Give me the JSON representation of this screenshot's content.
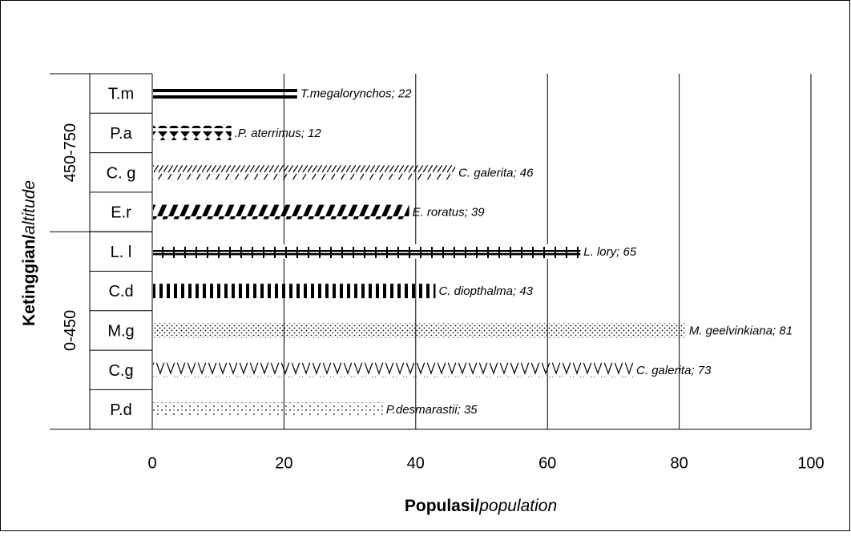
{
  "chart_data": {
    "type": "bar",
    "orientation": "horizontal",
    "title": "",
    "xlabel": {
      "bold": "Populasi/",
      "italic": "population"
    },
    "ylabel": {
      "bold": "Ketinggian/",
      "italic": "altitude"
    },
    "xlim": [
      0,
      100
    ],
    "xticks": [
      "0",
      "20",
      "40",
      "60",
      "80",
      "100"
    ],
    "grid": "vertical",
    "legend": "none",
    "groups": [
      {
        "name": "450-750",
        "count": 4
      },
      {
        "name": "0-450",
        "count": 5
      }
    ],
    "bars": [
      {
        "category": "T.m",
        "value": 22,
        "label": "T.megalorynchos; 22",
        "pattern": "double-line"
      },
      {
        "category": "P.a",
        "value": 12,
        "label": ".P. aterrimus; 12",
        "pattern": "hourglass"
      },
      {
        "category": "C. g",
        "value": 46,
        "label": "C. galerita; 46",
        "pattern": "thin-diagonal"
      },
      {
        "category": "E.r",
        "value": 39,
        "label": "E. roratus; 39",
        "pattern": "thick-diagonal"
      },
      {
        "category": "L. l",
        "value": 65,
        "label": "L. lory; 65",
        "pattern": "brick"
      },
      {
        "category": "C.d",
        "value": 43,
        "label": "C. diopthalma; 43",
        "pattern": "vertical-stripes"
      },
      {
        "category": "M.g",
        "value": 81,
        "label": "M. geelvinkiana; 81",
        "pattern": "dots"
      },
      {
        "category": "C.g",
        "value": 73,
        "label": "C. galerita; 73",
        "pattern": "zigzag"
      },
      {
        "category": "P.d",
        "value": 35,
        "label": "P.desmarastii; 35",
        "pattern": "sparse-dots"
      }
    ]
  }
}
